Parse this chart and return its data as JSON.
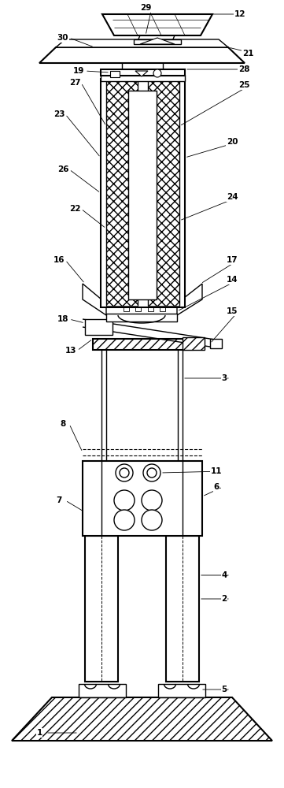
{
  "bg_color": "#ffffff",
  "line_color": "#000000",
  "fig_width": 3.61,
  "fig_height": 10.0,
  "lw": 1.0,
  "lw2": 1.5,
  "label_fontsize": 7.5
}
